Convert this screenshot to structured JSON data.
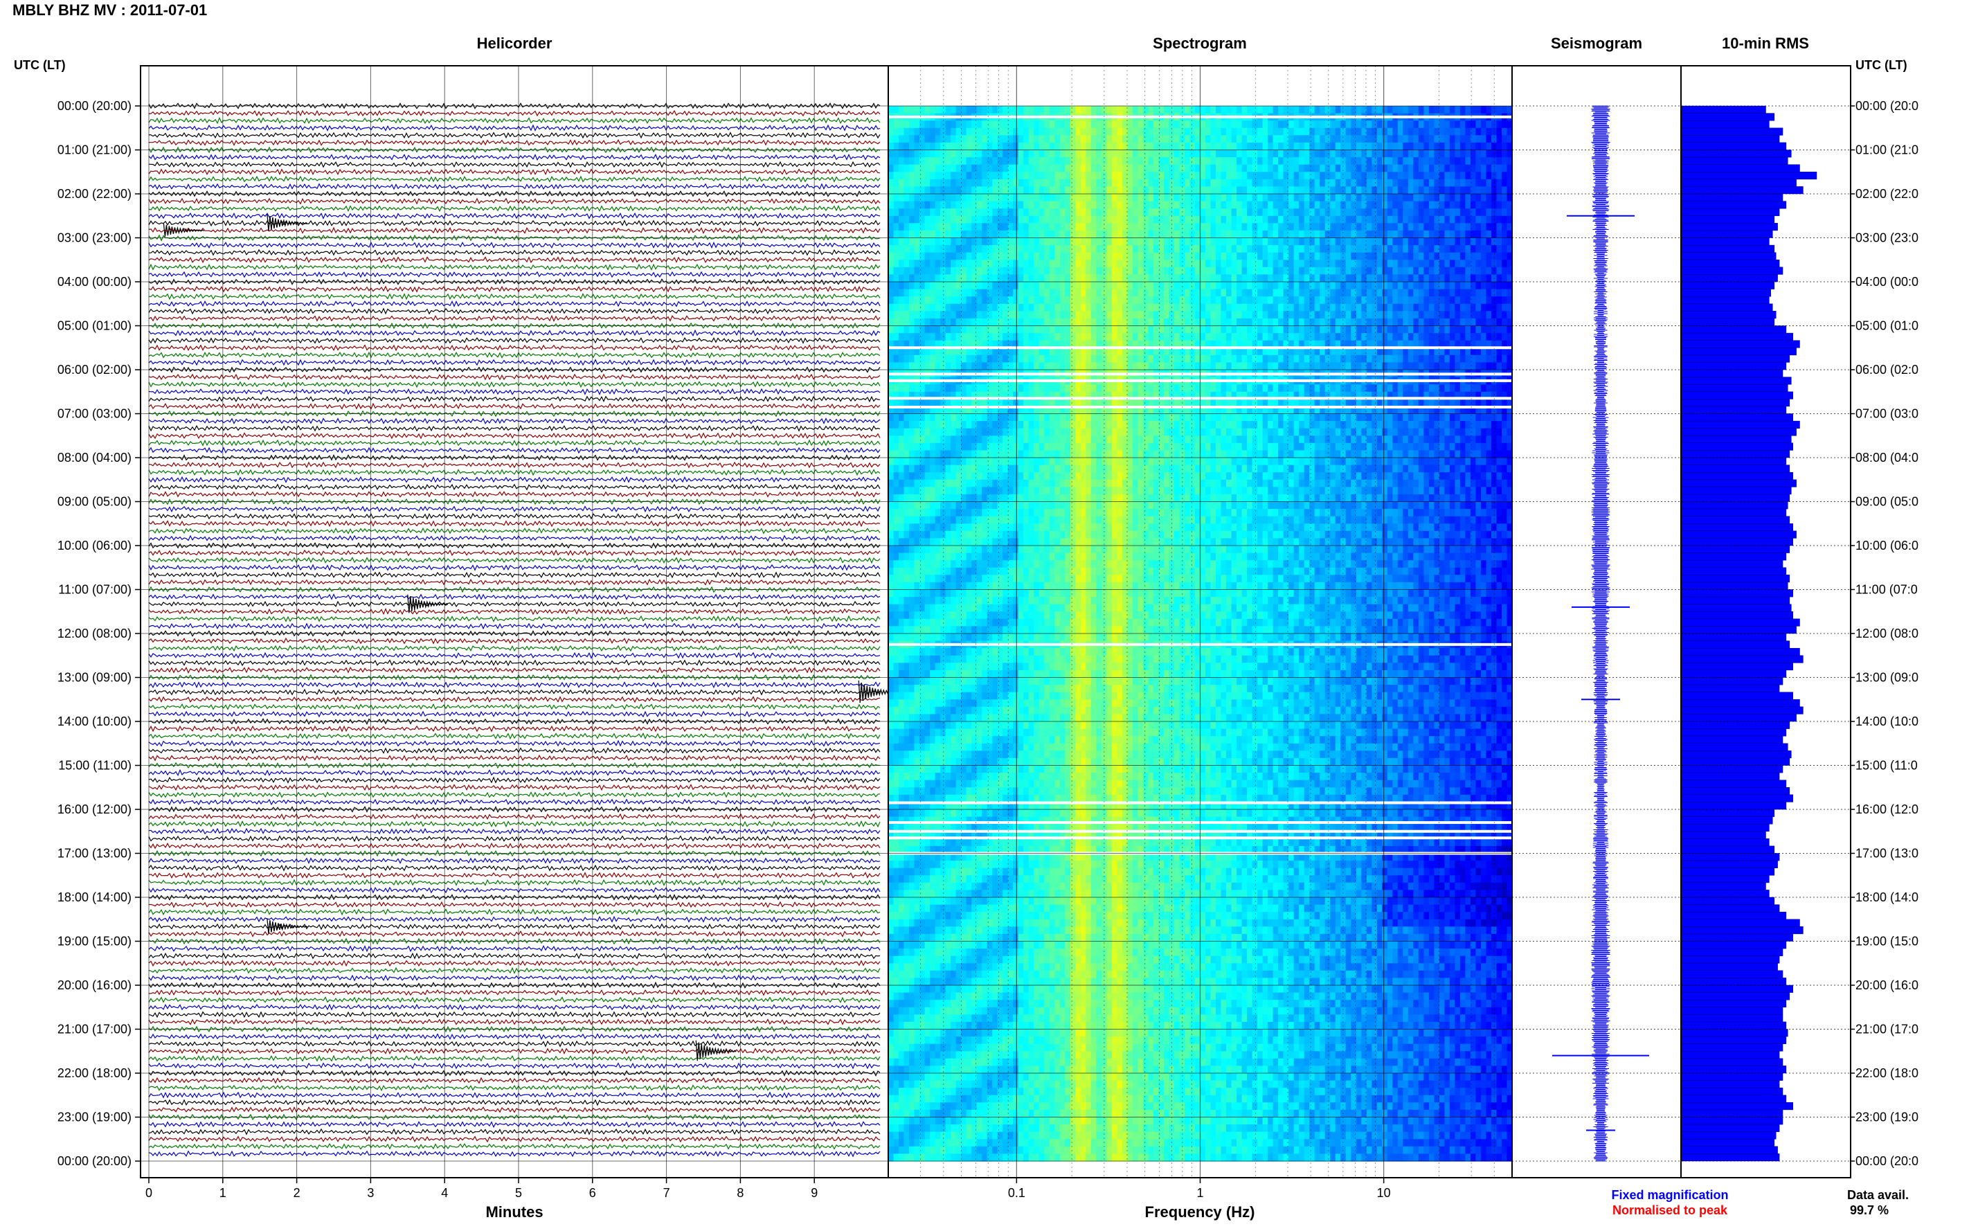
{
  "chart_data": {
    "type": "heatmap",
    "title": "MBLY BHZ MV : 2011-07-01",
    "utc_header": "UTC (LT)",
    "time_labels": [
      "00:00 (20:00)",
      "01:00 (21:00)",
      "02:00 (22:00)",
      "03:00 (23:00)",
      "04:00 (00:00)",
      "05:00 (01:00)",
      "06:00 (02:00)",
      "07:00 (03:00)",
      "08:00 (04:00)",
      "09:00 (05:00)",
      "10:00 (06:00)",
      "11:00 (07:00)",
      "12:00 (08:00)",
      "13:00 (09:00)",
      "14:00 (10:00)",
      "15:00 (11:00)",
      "16:00 (12:00)",
      "17:00 (13:00)",
      "18:00 (14:00)",
      "19:00 (15:00)",
      "20:00 (16:00)",
      "21:00 (17:00)",
      "22:00 (18:00)",
      "23:00 (19:00)",
      "00:00 (20:00)"
    ],
    "right_time_labels": [
      "00:00 (20:0",
      "01:00 (21:0",
      "02:00 (22:0",
      "03:00 (23:0",
      "04:00 (00:0",
      "05:00 (01:0",
      "06:00 (02:0",
      "07:00 (03:0",
      "08:00 (04:0",
      "09:00 (05:0",
      "10:00 (06:0",
      "11:00 (07:0",
      "12:00 (08:0",
      "13:00 (09:0",
      "14:00 (10:0",
      "15:00 (11:0",
      "16:00 (12:0",
      "17:00 (13:0",
      "18:00 (14:0",
      "19:00 (15:0",
      "20:00 (16:0",
      "21:00 (17:0",
      "22:00 (18:0",
      "23:00 (19:0",
      "00:00 (20:0"
    ],
    "helicorder": {
      "title": "Helicorder",
      "xlabel": "Minutes",
      "xticks": [
        "0",
        "1",
        "2",
        "3",
        "4",
        "5",
        "6",
        "7",
        "8",
        "9"
      ],
      "xlim": [
        0,
        10
      ],
      "traces_per_hour": 6,
      "trace_colors": [
        "#000000",
        "#8b0000",
        "#007800",
        "#0000c8"
      ],
      "events": [
        {
          "hour": 2.6,
          "minute": 1.6,
          "amp": 0.9
        },
        {
          "hour": 2.75,
          "minute": 0.2,
          "amp": 0.7
        },
        {
          "hour": 11.3,
          "minute": 3.5,
          "amp": 1.0
        },
        {
          "hour": 13.3,
          "minute": 9.6,
          "amp": 1.2
        },
        {
          "hour": 18.6,
          "minute": 1.6,
          "amp": 0.8
        },
        {
          "hour": 21.5,
          "minute": 7.4,
          "amp": 1.1
        }
      ]
    },
    "spectrogram": {
      "title": "Spectrogram",
      "xlabel": "Frequency (Hz)",
      "xscale": "log",
      "xlim": [
        0.02,
        50
      ],
      "xticks": [
        "0.1",
        "1",
        "10"
      ],
      "xtick_values": [
        0.1,
        1,
        10
      ],
      "colormap": "jet",
      "peak_band_hz": [
        0.2,
        0.5
      ],
      "data_gaps_hours": [
        0.25,
        5.5,
        6.1,
        6.25,
        6.65,
        6.85,
        12.25,
        15.85,
        16.3,
        16.5,
        16.65,
        17.0
      ]
    },
    "seismogram": {
      "title": "Seismogram",
      "spikes": [
        {
          "hour": 2.5,
          "width": 0.7
        },
        {
          "hour": 11.4,
          "width": 0.6
        },
        {
          "hour": 13.5,
          "width": 0.4
        },
        {
          "hour": 21.6,
          "width": 1.0
        },
        {
          "hour": 23.3,
          "width": 0.3
        }
      ]
    },
    "rms": {
      "title": "10-min RMS",
      "values": [
        0.5,
        0.55,
        0.52,
        0.6,
        0.58,
        0.62,
        0.65,
        0.63,
        0.7,
        0.8,
        0.68,
        0.72,
        0.6,
        0.62,
        0.58,
        0.55,
        0.57,
        0.54,
        0.52,
        0.55,
        0.56,
        0.58,
        0.6,
        0.57,
        0.55,
        0.53,
        0.52,
        0.54,
        0.56,
        0.55,
        0.62,
        0.66,
        0.7,
        0.68,
        0.64,
        0.62,
        0.6,
        0.65,
        0.63,
        0.66,
        0.64,
        0.62,
        0.66,
        0.7,
        0.68,
        0.65,
        0.66,
        0.64,
        0.62,
        0.64,
        0.66,
        0.68,
        0.65,
        0.64,
        0.63,
        0.62,
        0.64,
        0.66,
        0.68,
        0.66,
        0.64,
        0.62,
        0.6,
        0.62,
        0.64,
        0.63,
        0.66,
        0.64,
        0.65,
        0.66,
        0.7,
        0.68,
        0.62,
        0.64,
        0.7,
        0.72,
        0.66,
        0.62,
        0.6,
        0.58,
        0.66,
        0.7,
        0.72,
        0.68,
        0.64,
        0.62,
        0.6,
        0.63,
        0.65,
        0.64,
        0.6,
        0.58,
        0.62,
        0.64,
        0.66,
        0.62,
        0.55,
        0.54,
        0.52,
        0.5,
        0.52,
        0.55,
        0.58,
        0.57,
        0.55,
        0.52,
        0.5,
        0.52,
        0.55,
        0.58,
        0.62,
        0.7,
        0.72,
        0.66,
        0.62,
        0.6,
        0.58,
        0.57,
        0.6,
        0.62,
        0.66,
        0.64,
        0.62,
        0.6,
        0.6,
        0.62,
        0.63,
        0.62,
        0.6,
        0.58,
        0.6,
        0.62,
        0.6,
        0.58,
        0.6,
        0.62,
        0.66,
        0.6,
        0.6,
        0.58,
        0.56,
        0.55,
        0.57,
        0.58
      ],
      "xlim": [
        0,
        1
      ]
    },
    "legend": {
      "fixed": "Fixed magnification",
      "fixed_color": "#0000ff",
      "normalised": "Normalised to peak",
      "normalised_color": "#ff0000"
    },
    "data_avail": {
      "label": "Data avail.",
      "value": "99.7 %"
    }
  }
}
